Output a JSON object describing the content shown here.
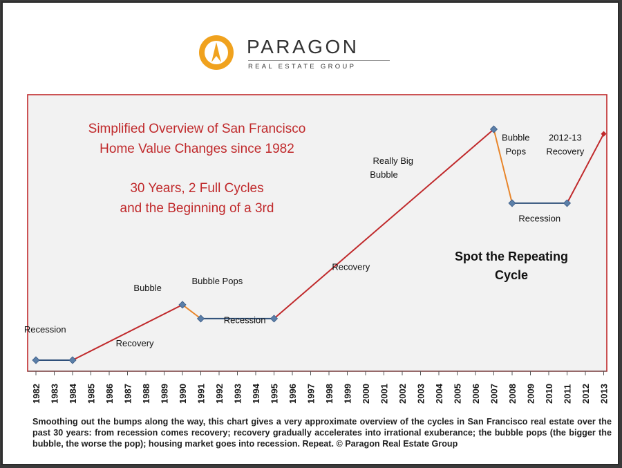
{
  "logo": {
    "name": "PARAGON",
    "tagline": "REAL ESTATE GROUP"
  },
  "caption": "Smoothing out the bumps along the way, this chart gives a very approximate overview of the cycles in San Francisco real estate over the past 30 years: from recession comes recovery; recovery gradually accelerates into irrational exuberance; the bubble pops (the bigger the bubble, the worse the pop); housing market goes into recession. Repeat. © Paragon Real Estate Group",
  "colors": {
    "brand_orange": "#f0a21e",
    "plot_border": "#c0292b",
    "plot_background": "#f2f2f2",
    "title_text": "#c0292b",
    "recovery_line": "#c0292b",
    "pop_line": "#e8852a",
    "recession_line": "#2e4f7a",
    "marker": "#5b7fa8"
  },
  "chart_data": {
    "type": "line",
    "title_lines": [
      "Simplified Overview of San Francisco",
      "Home Value Changes since 1982",
      "30 Years, 2 Full Cycles",
      "and the Beginning of a 3rd"
    ],
    "callout_lines": [
      "Spot the Repeating",
      "Cycle"
    ],
    "x_ticks": [
      "1982",
      "1983",
      "1984",
      "1985",
      "1986",
      "1987",
      "1988",
      "1989",
      "1990",
      "1991",
      "1992",
      "1993",
      "1994",
      "1995",
      "1996",
      "1997",
      "1998",
      "1999",
      "2000",
      "2001",
      "2002",
      "2003",
      "2004",
      "2005",
      "2006",
      "2007",
      "2008",
      "2009",
      "2010",
      "2011",
      "2012",
      "2013"
    ],
    "xlim": [
      1982,
      2013
    ],
    "ylim": [
      0,
      100
    ],
    "y_axis_labels": "none",
    "grid": false,
    "points": [
      {
        "x": 1982,
        "y": 0
      },
      {
        "x": 1984,
        "y": 0
      },
      {
        "x": 1990,
        "y": 24
      },
      {
        "x": 1991,
        "y": 18
      },
      {
        "x": 1995,
        "y": 18
      },
      {
        "x": 2007,
        "y": 100
      },
      {
        "x": 2008,
        "y": 68
      },
      {
        "x": 2011,
        "y": 68
      },
      {
        "x": 2013,
        "y": 98
      }
    ],
    "segments": [
      {
        "label": "Recession",
        "phase": "recession",
        "from": 1982,
        "to": 1984
      },
      {
        "label": "Recovery",
        "phase": "recovery",
        "from": 1984,
        "to": 1990
      },
      {
        "label": "Bubble Pops",
        "phase": "pop",
        "from": 1990,
        "to": 1991
      },
      {
        "label": "Recession",
        "phase": "recession",
        "from": 1991,
        "to": 1995
      },
      {
        "label": "Recovery",
        "phase": "recovery",
        "from": 1995,
        "to": 2007
      },
      {
        "label": "Bubble Pops",
        "phase": "pop",
        "from": 2007,
        "to": 2008
      },
      {
        "label": "Recession",
        "phase": "recession",
        "from": 2008,
        "to": 2011
      },
      {
        "label": "2012-13 Recovery",
        "phase": "recovery",
        "from": 2011,
        "to": 2013
      }
    ],
    "annotations": [
      {
        "text": "Recession",
        "x": 1982.5,
        "y": 12
      },
      {
        "text": "Recovery",
        "x": 1987.4,
        "y": 6
      },
      {
        "text": "Bubble",
        "x": 1988.1,
        "y": 30
      },
      {
        "text": "Bubble Pops",
        "x": 1991.9,
        "y": 33
      },
      {
        "text": "Recession",
        "x": 1993.4,
        "y": 16
      },
      {
        "text": "Recovery",
        "x": 1999.2,
        "y": 39
      },
      {
        "text": "Really Big",
        "x": 2001.5,
        "y": 85
      },
      {
        "text": "Bubble",
        "x": 2001.0,
        "y": 79
      },
      {
        "text": "Bubble",
        "x": 2008.2,
        "y": 95
      },
      {
        "text": "Pops",
        "x": 2008.2,
        "y": 89
      },
      {
        "text": "2012-13",
        "x": 2010.9,
        "y": 95
      },
      {
        "text": "Recovery",
        "x": 2010.9,
        "y": 89
      },
      {
        "text": "Recession",
        "x": 2009.5,
        "y": 60
      }
    ]
  }
}
